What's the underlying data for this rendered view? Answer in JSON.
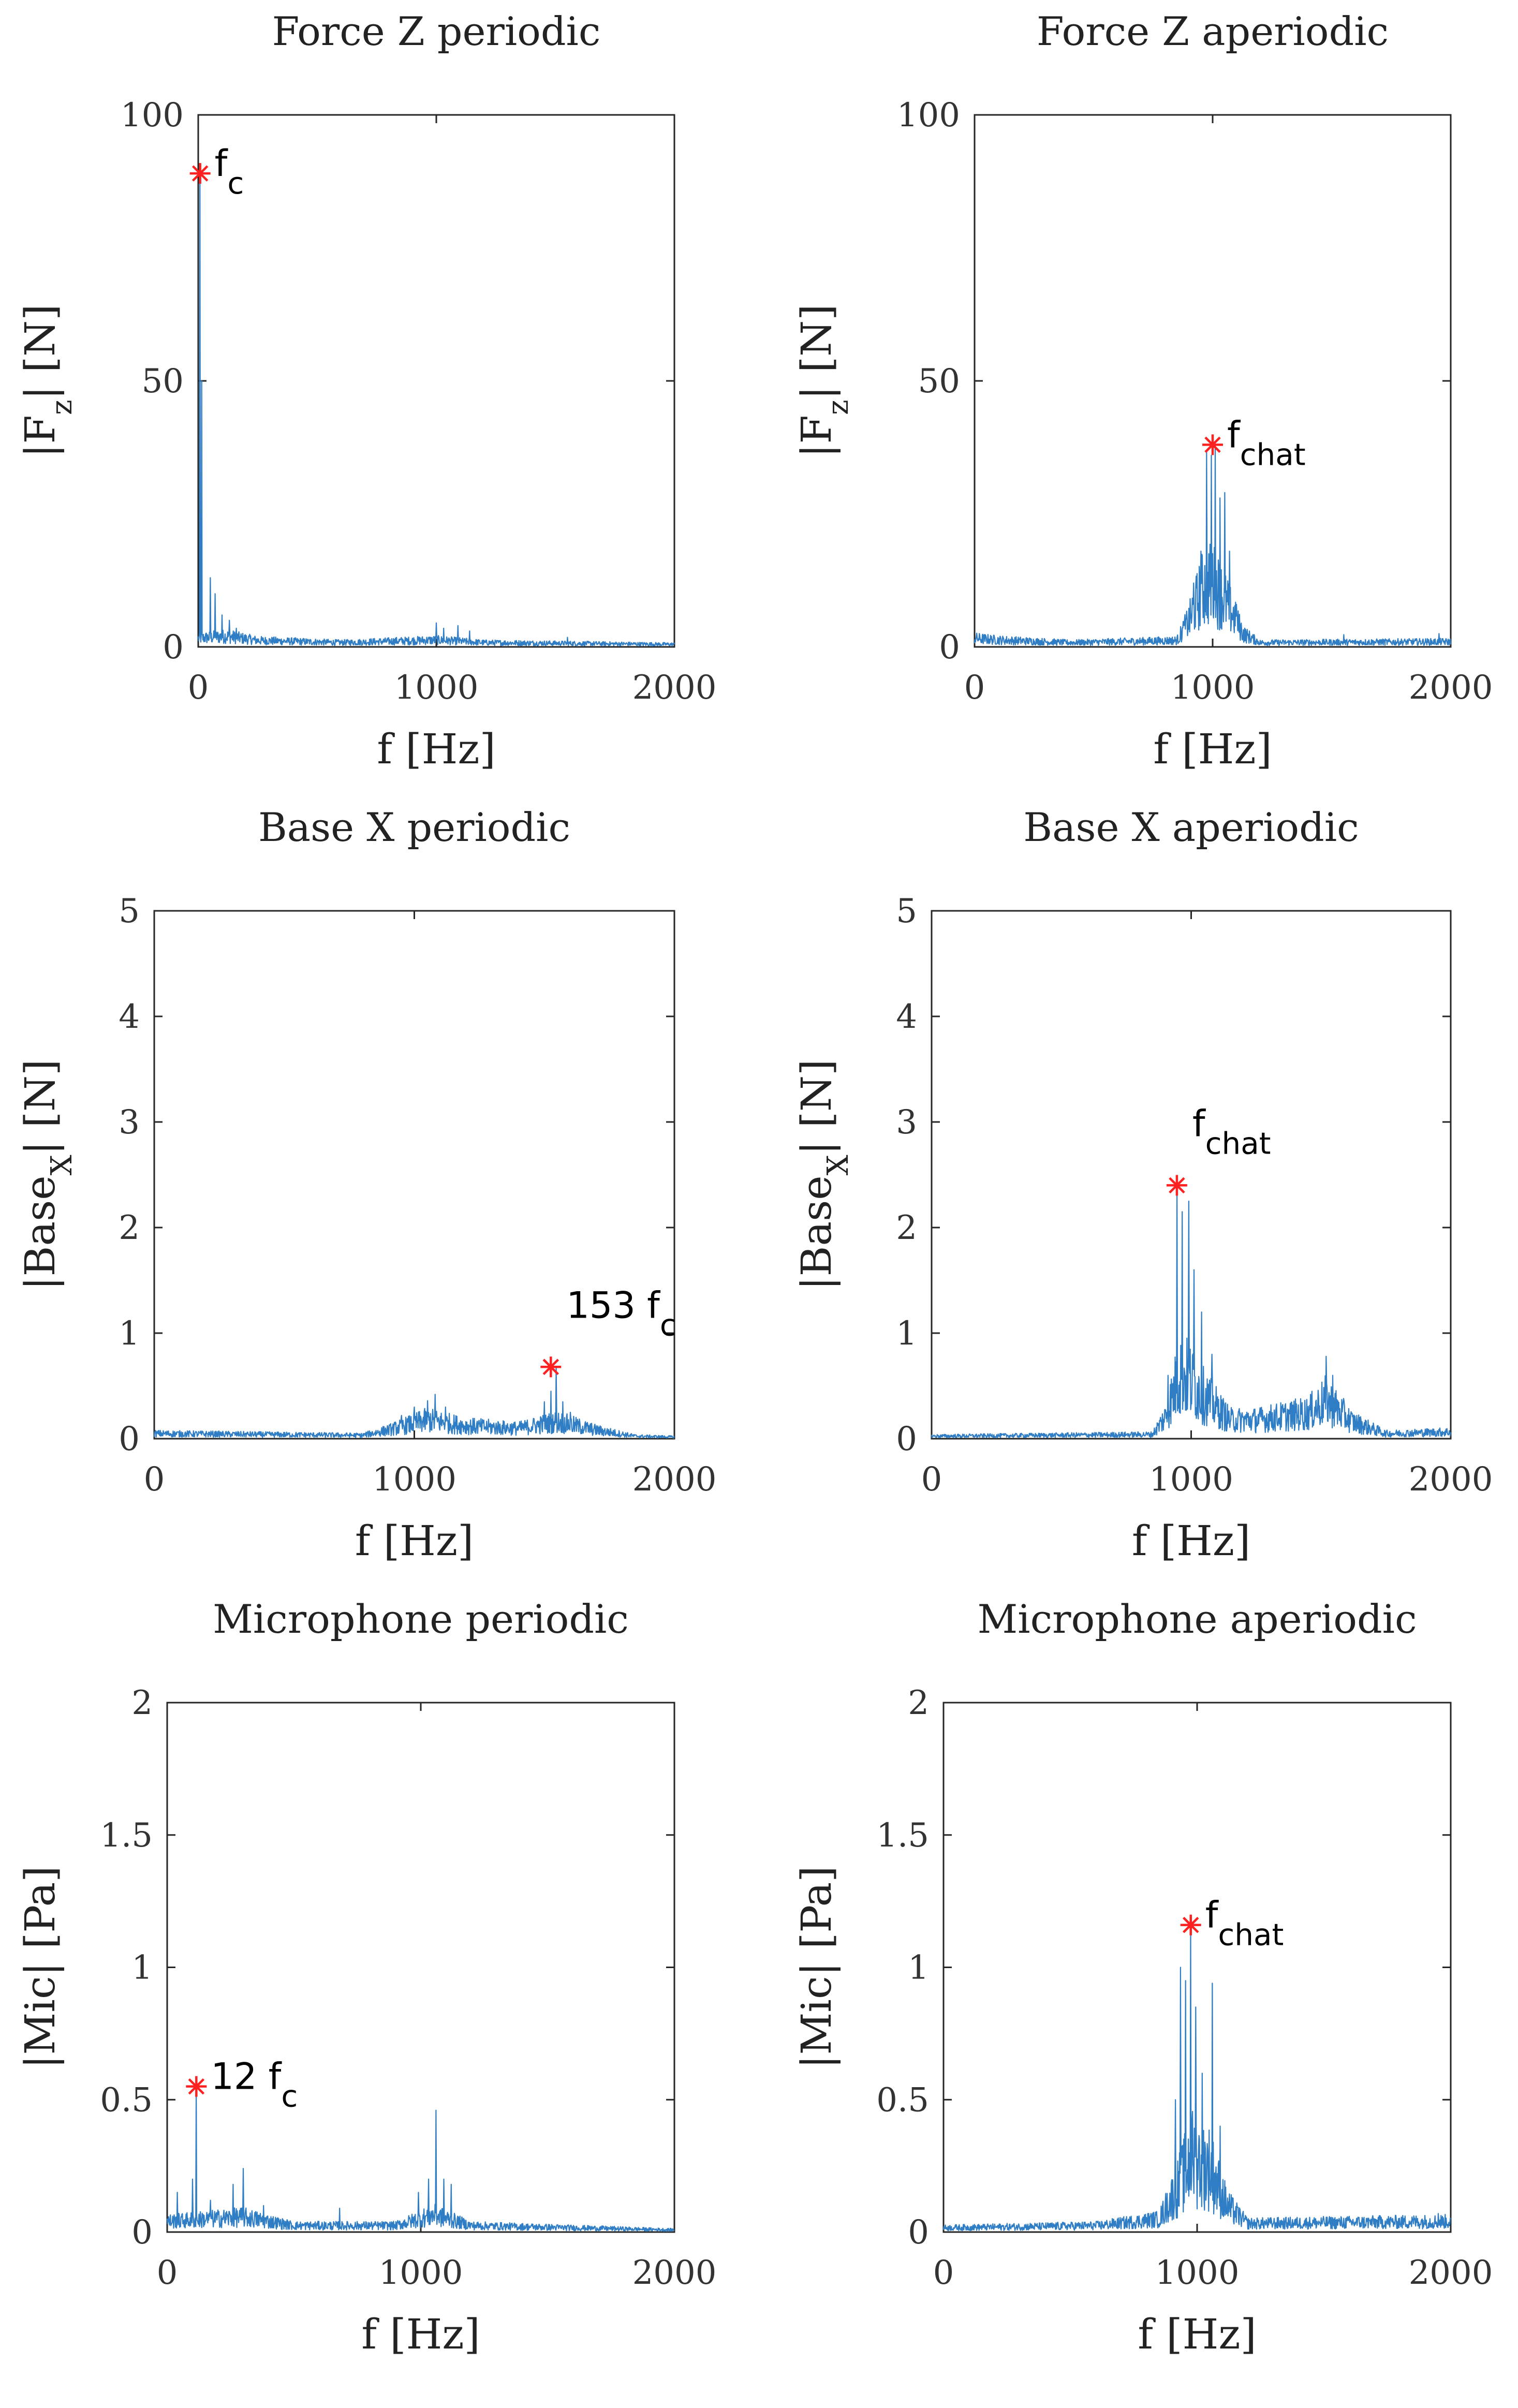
{
  "chart_data": [
    {
      "type": "line",
      "title": "Force Z periodic",
      "xlabel": "f [Hz]",
      "ylabel": "|F_z| [N]",
      "ylabel_main": "|F",
      "ylabel_sub": "z",
      "ylabel_rest": "| [N]",
      "xlim": [
        0,
        2000
      ],
      "ylim": [
        0,
        100
      ],
      "xticks": [
        "0",
        "1000",
        "2000"
      ],
      "yticks": [
        "0",
        "50",
        "100"
      ],
      "color": "#2f7dc4",
      "spectrum": {
        "noise": [
          [
            0,
            2.0
          ],
          [
            120,
            2.5
          ],
          [
            250,
            1.5
          ],
          [
            600,
            1.0
          ],
          [
            1000,
            1.6
          ],
          [
            1200,
            1.0
          ],
          [
            2000,
            0.6
          ]
        ],
        "peaks": [
          [
            8,
            88
          ],
          [
            15,
            50
          ],
          [
            50,
            13
          ],
          [
            70,
            10
          ],
          [
            100,
            6
          ],
          [
            130,
            5
          ],
          [
            160,
            3.5
          ],
          [
            1000,
            4.5
          ],
          [
            1030,
            3.5
          ],
          [
            1090,
            4
          ],
          [
            1140,
            3
          ],
          [
            1550,
            1.8
          ]
        ]
      },
      "marker": {
        "x": 8,
        "y": 89,
        "label": "f",
        "label_sub": "c",
        "label_pos": "right"
      }
    },
    {
      "type": "line",
      "title": "Force Z aperiodic",
      "xlabel": "f [Hz]",
      "ylabel": "|F_z| [N]",
      "ylabel_main": "|F",
      "ylabel_sub": "z",
      "ylabel_rest": "| [N]",
      "xlim": [
        0,
        2000
      ],
      "ylim": [
        0,
        100
      ],
      "xticks": [
        "0",
        "1000",
        "2000"
      ],
      "yticks": [
        "0",
        "50",
        "100"
      ],
      "color": "#2f7dc4",
      "spectrum": {
        "noise": [
          [
            0,
            2.0
          ],
          [
            100,
            1.6
          ],
          [
            400,
            1.0
          ],
          [
            850,
            1.5
          ],
          [
            900,
            6
          ],
          [
            960,
            14
          ],
          [
            1000,
            15
          ],
          [
            1060,
            10
          ],
          [
            1130,
            3
          ],
          [
            1200,
            1.0
          ],
          [
            2000,
            1.2
          ]
        ],
        "peaks": [
          [
            880,
            4
          ],
          [
            920,
            12
          ],
          [
            950,
            18
          ],
          [
            975,
            37
          ],
          [
            995,
            36
          ],
          [
            1010,
            38
          ],
          [
            1030,
            28
          ],
          [
            1050,
            29
          ],
          [
            1070,
            18
          ],
          [
            1100,
            8
          ],
          [
            1550,
            2.3
          ],
          [
            1950,
            2.5
          ]
        ]
      },
      "marker": {
        "x": 1000,
        "y": 38,
        "label": "f",
        "label_sub": "chat",
        "label_pos": "right"
      }
    },
    {
      "type": "line",
      "title": "Base X periodic",
      "xlabel": "f [Hz]",
      "ylabel": "|Base_X| [N]",
      "ylabel_main": "|Base",
      "ylabel_sub": "X",
      "ylabel_rest": "| [N]",
      "xlim": [
        0,
        2000
      ],
      "ylim": [
        0,
        5
      ],
      "xticks": [
        "0",
        "1000",
        "2000"
      ],
      "yticks": [
        "0",
        "1",
        "2",
        "3",
        "4",
        "5"
      ],
      "color": "#2f7dc4",
      "spectrum": {
        "noise": [
          [
            0,
            0.06
          ],
          [
            800,
            0.04
          ],
          [
            900,
            0.1
          ],
          [
            1050,
            0.22
          ],
          [
            1200,
            0.15
          ],
          [
            1400,
            0.12
          ],
          [
            1550,
            0.2
          ],
          [
            1700,
            0.1
          ],
          [
            1850,
            0.03
          ],
          [
            2000,
            0.02
          ]
        ],
        "peaks": [
          [
            950,
            0.22
          ],
          [
            1000,
            0.3
          ],
          [
            1050,
            0.36
          ],
          [
            1080,
            0.42
          ],
          [
            1120,
            0.3
          ],
          [
            1500,
            0.35
          ],
          [
            1525,
            0.45
          ],
          [
            1545,
            0.68
          ],
          [
            1570,
            0.35
          ],
          [
            1600,
            0.25
          ]
        ]
      },
      "marker": {
        "x": 1525,
        "y": 0.68,
        "label": "153 f",
        "label_sub": "c",
        "label_pos": "above"
      }
    },
    {
      "type": "line",
      "title": "Base X aperiodic",
      "xlabel": "f [Hz]",
      "ylabel": "|Base_X| [N]",
      "ylabel_main": "|Base",
      "ylabel_sub": "X",
      "ylabel_rest": "| [N]",
      "xlim": [
        0,
        2000
      ],
      "ylim": [
        0,
        5
      ],
      "xticks": [
        "0",
        "1000",
        "2000"
      ],
      "yticks": [
        "0",
        "1",
        "2",
        "3",
        "4",
        "5"
      ],
      "color": "#2f7dc4",
      "spectrum": {
        "noise": [
          [
            0,
            0.03
          ],
          [
            850,
            0.05
          ],
          [
            900,
            0.25
          ],
          [
            960,
            0.8
          ],
          [
            1050,
            0.5
          ],
          [
            1150,
            0.22
          ],
          [
            1250,
            0.22
          ],
          [
            1450,
            0.3
          ],
          [
            1520,
            0.45
          ],
          [
            1620,
            0.2
          ],
          [
            1750,
            0.06
          ],
          [
            2000,
            0.08
          ]
        ],
        "peaks": [
          [
            910,
            0.6
          ],
          [
            945,
            2.4
          ],
          [
            965,
            2.15
          ],
          [
            990,
            2.25
          ],
          [
            1010,
            1.6
          ],
          [
            1040,
            1.2
          ],
          [
            1080,
            0.8
          ],
          [
            1520,
            0.78
          ],
          [
            1545,
            0.6
          ]
        ]
      },
      "marker": {
        "x": 945,
        "y": 2.4,
        "label": "f",
        "label_sub": "chat",
        "label_pos": "above"
      }
    },
    {
      "type": "line",
      "title": "Microphone periodic",
      "xlabel": "f [Hz]",
      "ylabel": "|Mic| [Pa]",
      "ylabel_main": "|Mic| [Pa]",
      "ylabel_sub": "",
      "ylabel_rest": "",
      "xlim": [
        0,
        2000
      ],
      "ylim": [
        0,
        2
      ],
      "xticks": [
        "0",
        "1000",
        "2000"
      ],
      "yticks": [
        "0",
        "0.5",
        "1",
        "1.5",
        "2"
      ],
      "color": "#2f7dc4",
      "spectrum": {
        "noise": [
          [
            0,
            0.05
          ],
          [
            150,
            0.06
          ],
          [
            300,
            0.07
          ],
          [
            500,
            0.03
          ],
          [
            900,
            0.03
          ],
          [
            1050,
            0.08
          ],
          [
            1200,
            0.03
          ],
          [
            2000,
            0.01
          ]
        ],
        "peaks": [
          [
            40,
            0.15
          ],
          [
            100,
            0.2
          ],
          [
            115,
            0.55
          ],
          [
            170,
            0.12
          ],
          [
            260,
            0.18
          ],
          [
            300,
            0.24
          ],
          [
            380,
            0.1
          ],
          [
            680,
            0.09
          ],
          [
            990,
            0.15
          ],
          [
            1030,
            0.2
          ],
          [
            1060,
            0.46
          ],
          [
            1090,
            0.2
          ],
          [
            1120,
            0.18
          ]
        ]
      },
      "marker": {
        "x": 115,
        "y": 0.55,
        "label": "12 f",
        "label_sub": "c",
        "label_pos": "right"
      }
    },
    {
      "type": "line",
      "title": "Microphone aperiodic",
      "xlabel": "f [Hz]",
      "ylabel": "|Mic| [Pa]",
      "ylabel_main": "|Mic| [Pa]",
      "ylabel_sub": "",
      "ylabel_rest": "",
      "xlim": [
        0,
        2000
      ],
      "ylim": [
        0,
        2
      ],
      "xticks": [
        "0",
        "1000",
        "2000"
      ],
      "yticks": [
        "0",
        "0.5",
        "1",
        "1.5",
        "2"
      ],
      "color": "#2f7dc4",
      "spectrum": {
        "noise": [
          [
            0,
            0.02
          ],
          [
            600,
            0.03
          ],
          [
            850,
            0.06
          ],
          [
            920,
            0.2
          ],
          [
            980,
            0.35
          ],
          [
            1050,
            0.3
          ],
          [
            1120,
            0.12
          ],
          [
            1200,
            0.04
          ],
          [
            2000,
            0.05
          ]
        ],
        "peaks": [
          [
            915,
            0.5
          ],
          [
            935,
            1.0
          ],
          [
            955,
            0.95
          ],
          [
            975,
            1.16
          ],
          [
            995,
            0.85
          ],
          [
            1020,
            0.6
          ],
          [
            1060,
            0.94
          ],
          [
            1090,
            0.4
          ],
          [
            1950,
            0.07
          ]
        ]
      },
      "marker": {
        "x": 975,
        "y": 1.16,
        "label": "f",
        "label_sub": "chat",
        "label_pos": "right"
      }
    }
  ]
}
